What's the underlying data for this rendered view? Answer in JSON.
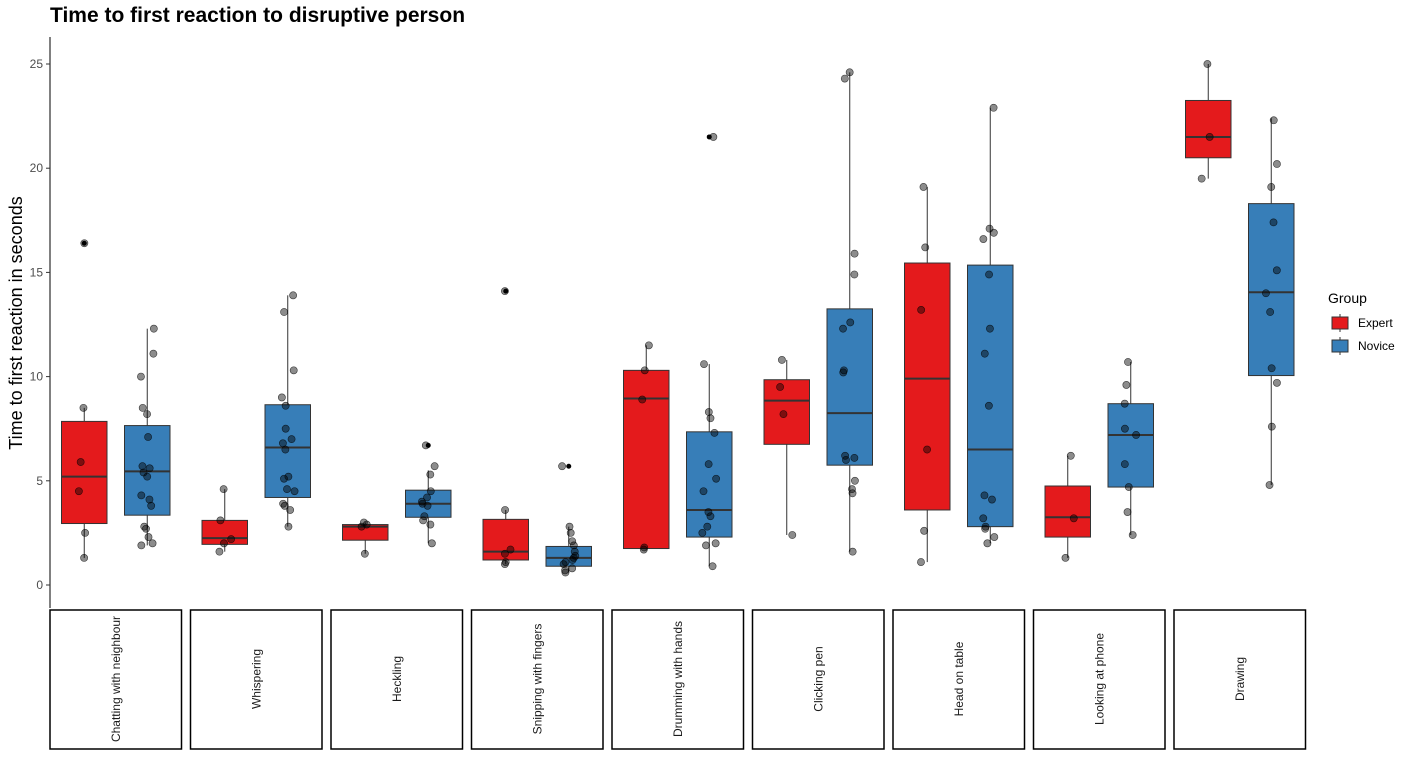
{
  "chart_data": {
    "type": "box",
    "title": "Time to first reaction to disruptive person",
    "ylabel": "Time to first reaction in seconds",
    "xlabel": "",
    "ylim": [
      -1.2,
      26.3
    ],
    "yticks": [
      0,
      5,
      10,
      15,
      20,
      25
    ],
    "grid": false,
    "legend": {
      "title": "Group",
      "position": "right"
    },
    "groups": [
      {
        "name": "Expert",
        "color": "#E41A1C"
      },
      {
        "name": "Novice",
        "color": "#377EB8"
      }
    ],
    "categories": [
      "Chatting with neighbour",
      "Whispering",
      "Heckling",
      "Snipping with fingers",
      "Drumming with hands",
      "Clicking pen",
      "Head on table",
      "Looking at phone",
      "Drawing"
    ],
    "boxes": [
      {
        "category": "Chatting with neighbour",
        "group": "Expert",
        "whisker_low": 1.3,
        "q1": 2.95,
        "median": 5.2,
        "q3": 7.85,
        "whisker_high": 8.5,
        "outliers": [
          16.4
        ],
        "points": [
          1.3,
          2.5,
          4.5,
          5.9,
          8.5,
          16.4
        ]
      },
      {
        "category": "Chatting with neighbour",
        "group": "Novice",
        "whisker_low": 1.9,
        "q1": 3.35,
        "median": 5.45,
        "q3": 7.65,
        "whisker_high": 12.3,
        "outliers": [],
        "points": [
          1.9,
          2.0,
          2.3,
          2.7,
          2.8,
          3.8,
          4.1,
          4.3,
          5.2,
          5.4,
          5.6,
          5.7,
          7.1,
          8.2,
          8.5,
          10.0,
          11.1,
          12.3
        ]
      },
      {
        "category": "Whispering",
        "group": "Expert",
        "whisker_low": 1.6,
        "q1": 1.95,
        "median": 2.25,
        "q3": 3.1,
        "whisker_high": 4.6,
        "outliers": [],
        "points": [
          1.6,
          2.0,
          2.2,
          3.1,
          4.6
        ]
      },
      {
        "category": "Whispering",
        "group": "Novice",
        "whisker_low": 2.8,
        "q1": 4.2,
        "median": 6.6,
        "q3": 8.65,
        "whisker_high": 13.9,
        "outliers": [],
        "points": [
          2.8,
          3.6,
          3.8,
          3.9,
          4.5,
          4.6,
          5.1,
          5.2,
          6.5,
          6.8,
          7.0,
          7.5,
          8.6,
          9.0,
          10.3,
          13.1,
          13.9
        ]
      },
      {
        "category": "Heckling",
        "group": "Expert",
        "whisker_low": 1.5,
        "q1": 2.15,
        "median": 2.8,
        "q3": 2.9,
        "whisker_high": 3.0,
        "outliers": [],
        "points": [
          1.5,
          2.8,
          2.9,
          3.0
        ]
      },
      {
        "category": "Heckling",
        "group": "Novice",
        "whisker_low": 2.0,
        "q1": 3.25,
        "median": 3.9,
        "q3": 4.55,
        "whisker_high": 5.5,
        "outliers": [
          6.7
        ],
        "points": [
          2.0,
          2.9,
          3.1,
          3.3,
          3.8,
          3.9,
          4.0,
          4.2,
          4.5,
          5.3,
          5.7,
          6.7
        ]
      },
      {
        "category": "Snipping with fingers",
        "group": "Expert",
        "whisker_low": 1.0,
        "q1": 1.2,
        "median": 1.6,
        "q3": 3.15,
        "whisker_high": 3.6,
        "outliers": [
          14.1
        ],
        "points": [
          1.0,
          1.1,
          1.5,
          1.7,
          3.6,
          14.1
        ]
      },
      {
        "category": "Snipping with fingers",
        "group": "Novice",
        "whisker_low": 0.6,
        "q1": 0.9,
        "median": 1.3,
        "q3": 1.85,
        "whisker_high": 2.8,
        "outliers": [
          5.7
        ],
        "points": [
          0.6,
          0.7,
          0.8,
          1.0,
          1.1,
          1.2,
          1.3,
          1.4,
          1.6,
          1.9,
          2.1,
          2.5,
          2.8,
          5.7
        ]
      },
      {
        "category": "Drumming with hands",
        "group": "Expert",
        "whisker_low": 1.7,
        "q1": 1.75,
        "median": 8.95,
        "q3": 10.3,
        "whisker_high": 11.5,
        "outliers": [],
        "points": [
          1.7,
          1.8,
          8.9,
          10.3,
          11.5
        ]
      },
      {
        "category": "Drumming with hands",
        "group": "Novice",
        "whisker_low": 0.9,
        "q1": 2.3,
        "median": 3.6,
        "q3": 7.35,
        "whisker_high": 10.6,
        "outliers": [
          21.5
        ],
        "points": [
          0.9,
          1.9,
          2.0,
          2.5,
          2.8,
          3.3,
          3.5,
          4.5,
          5.1,
          5.8,
          7.3,
          8.0,
          8.3,
          10.6,
          21.5
        ]
      },
      {
        "category": "Clicking pen",
        "group": "Expert",
        "whisker_low": 2.4,
        "q1": 6.75,
        "median": 8.85,
        "q3": 9.85,
        "whisker_high": 10.8,
        "outliers": [],
        "points": [
          2.4,
          8.2,
          9.5,
          10.8
        ]
      },
      {
        "category": "Clicking pen",
        "group": "Novice",
        "whisker_low": 1.6,
        "q1": 5.75,
        "median": 8.25,
        "q3": 13.25,
        "whisker_high": 24.6,
        "outliers": [],
        "points": [
          1.6,
          4.4,
          4.6,
          5.0,
          6.0,
          6.1,
          6.2,
          10.2,
          10.3,
          12.3,
          12.6,
          14.9,
          15.9,
          24.3,
          24.6
        ]
      },
      {
        "category": "Head on table",
        "group": "Expert",
        "whisker_low": 1.1,
        "q1": 3.6,
        "median": 9.9,
        "q3": 15.45,
        "whisker_high": 19.1,
        "outliers": [],
        "points": [
          1.1,
          2.6,
          6.5,
          13.2,
          16.2,
          19.1
        ]
      },
      {
        "category": "Head on table",
        "group": "Novice",
        "whisker_low": 2.0,
        "q1": 2.8,
        "median": 6.5,
        "q3": 15.35,
        "whisker_high": 22.9,
        "outliers": [],
        "points": [
          2.0,
          2.3,
          2.7,
          2.8,
          3.2,
          4.1,
          4.3,
          8.6,
          11.1,
          12.3,
          14.9,
          16.6,
          16.9,
          17.1,
          22.9
        ]
      },
      {
        "category": "Looking at phone",
        "group": "Expert",
        "whisker_low": 1.3,
        "q1": 2.3,
        "median": 3.25,
        "q3": 4.75,
        "whisker_high": 6.2,
        "outliers": [],
        "points": [
          1.3,
          3.2,
          6.2
        ]
      },
      {
        "category": "Looking at phone",
        "group": "Novice",
        "whisker_low": 2.4,
        "q1": 4.7,
        "median": 7.2,
        "q3": 8.7,
        "whisker_high": 10.7,
        "outliers": [],
        "points": [
          2.4,
          3.5,
          4.7,
          5.8,
          7.2,
          7.5,
          8.7,
          9.6,
          10.7
        ]
      },
      {
        "category": "Drawing",
        "group": "Expert",
        "whisker_low": 19.5,
        "q1": 20.5,
        "median": 21.5,
        "q3": 23.25,
        "whisker_high": 25.0,
        "outliers": [],
        "points": [
          19.5,
          21.5,
          25.0
        ]
      },
      {
        "category": "Drawing",
        "group": "Novice",
        "whisker_low": 4.8,
        "q1": 10.05,
        "median": 14.05,
        "q3": 18.3,
        "whisker_high": 22.4,
        "outliers": [],
        "points": [
          4.8,
          7.6,
          9.7,
          10.4,
          13.1,
          14.0,
          15.1,
          17.4,
          19.1,
          20.2,
          22.3
        ]
      }
    ]
  }
}
